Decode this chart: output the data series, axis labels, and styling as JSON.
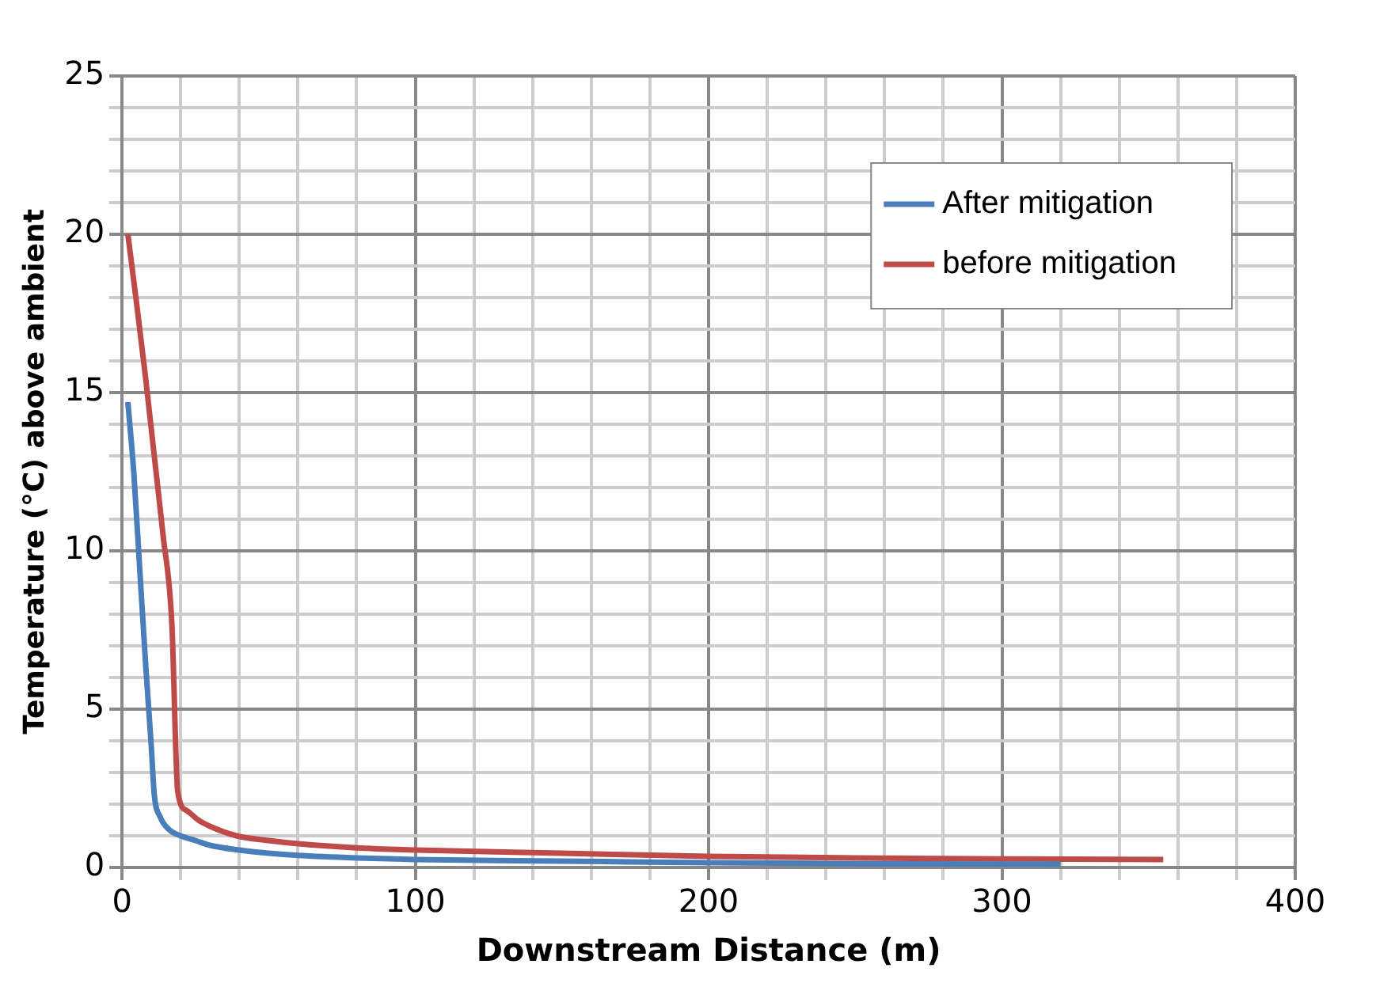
{
  "chart_data": {
    "type": "line",
    "xlabel": "Downstream Distance (m)",
    "ylabel": "Temperature (°C) above ambient",
    "xlim": [
      0,
      400
    ],
    "xticks": [
      0,
      100,
      200,
      300,
      400
    ],
    "ylim": [
      0,
      25
    ],
    "yticks": [
      0,
      5,
      10,
      15,
      20,
      25
    ],
    "grid": true,
    "legend": "top right",
    "marker": "none",
    "line_style": "solid",
    "series": [
      {
        "name": "After mitigation",
        "color": "#4a7ebb",
        "x": [
          2,
          4,
          6,
          8,
          10,
          11,
          13,
          16,
          20,
          25,
          30,
          40,
          50,
          60,
          80,
          100,
          150,
          200,
          250,
          320
        ],
        "values": [
          14.7,
          12.5,
          9.5,
          6.5,
          3.8,
          2.3,
          1.6,
          1.2,
          1.0,
          0.85,
          0.7,
          0.55,
          0.45,
          0.38,
          0.3,
          0.25,
          0.2,
          0.15,
          0.12,
          0.1
        ]
      },
      {
        "name": "before mitigation",
        "color": "#be4b48",
        "x": [
          2,
          5,
          8,
          11,
          14,
          17,
          19,
          22,
          26,
          30,
          39,
          50,
          60,
          80,
          100,
          150,
          200,
          250,
          300,
          355
        ],
        "values": [
          20,
          17.8,
          15.5,
          13,
          10.5,
          7.7,
          2.4,
          1.8,
          1.5,
          1.3,
          1.0,
          0.85,
          0.75,
          0.62,
          0.55,
          0.45,
          0.35,
          0.3,
          0.27,
          0.25
        ]
      }
    ]
  }
}
